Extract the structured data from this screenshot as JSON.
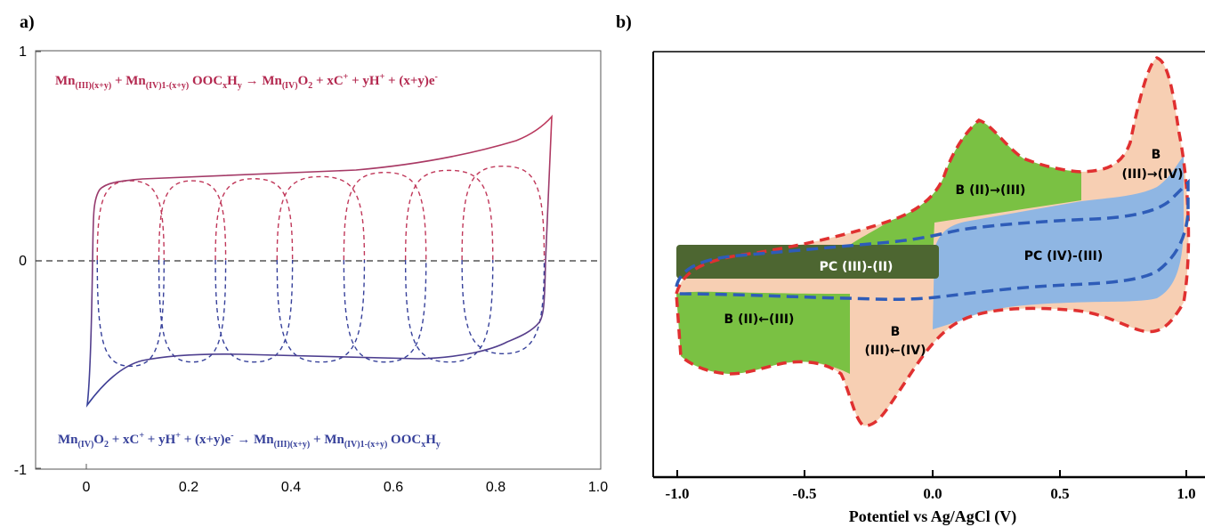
{
  "panel_a": {
    "label": "a)",
    "equation_top": {
      "t1": "Mn",
      "s1": "(III)(x+y)",
      "t2": " + Mn",
      "s2": "(IV)1-(x+y)",
      "t3": " OOC",
      "s3": "x",
      "t4": "H",
      "s4": "y",
      "t5": " →  Mn",
      "s5": "(IV)",
      "t6": "O",
      "s6": "2",
      "t7": " + xC",
      "p1": "+",
      "t8": " + yH",
      "p2": "+",
      "t9": " + (x+y)e",
      "p3": "-"
    },
    "equation_bottom": {
      "t1": "Mn",
      "s1": "(IV)",
      "t2": "O",
      "s2": "2",
      "t3": " + xC",
      "p1": "+",
      "t4": " + yH",
      "p2": "+",
      "t5": " + (x+y)e",
      "p3": "-",
      "t6": " → Mn",
      "s3": "(III)(x+y)",
      "t7": " + Mn",
      "s4": "(IV)1-(x+y)",
      "t8": " OOC",
      "s5": "x",
      "t9": "H",
      "s6": "y"
    }
  },
  "panel_b": {
    "label": "b)",
    "xlabel": "Potentiel vs Ag/AgCl (V)",
    "regions": {
      "b_iii_iv_1": "B",
      "b_iii_iv_2": "(III)→(IV)",
      "b_ii_iii": "B (II)→(III)",
      "pc_iv_iii": "PC (IV)-(III)",
      "pc_iii_ii": "PC  (III)-(II)",
      "b_ii_iii_back": "B (II)←(III)",
      "b_iii_iv_back_1": "B",
      "b_iii_iv_back_2": "(III)←(IV)"
    }
  },
  "chart_data": [
    {
      "type": "line",
      "xlim": [
        -0.1,
        1.0
      ],
      "ylim": [
        -1,
        1
      ],
      "xticks": [
        "0",
        "0.2",
        "0.4",
        "0.6",
        "0.8",
        "1.0"
      ],
      "yticks": [
        "1",
        "0",
        "-1"
      ],
      "hline_dashed_at": 0,
      "series": [
        {
          "role": "oxidation",
          "color": "#c0385a",
          "style": "solid",
          "x": [
            0.01,
            0.02,
            0.05,
            0.1,
            0.2,
            0.4,
            0.6,
            0.7,
            0.8,
            0.86,
            0.9
          ],
          "y": [
            0.0,
            0.28,
            0.36,
            0.4,
            0.41,
            0.45,
            0.5,
            0.53,
            0.57,
            0.61,
            0.69
          ]
        },
        {
          "role": "reduction",
          "color": "#36409a",
          "style": "solid",
          "x": [
            0.89,
            0.88,
            0.85,
            0.8,
            0.6,
            0.4,
            0.2,
            0.1,
            0.05,
            0.01
          ],
          "y": [
            0.0,
            -0.28,
            -0.36,
            -0.43,
            -0.46,
            -0.46,
            -0.45,
            -0.48,
            -0.56,
            -0.7
          ]
        }
      ],
      "dashed_loops": {
        "count": 7,
        "x_min": [
          0.02,
          0.14,
          0.25,
          0.37,
          0.5,
          0.62,
          0.73
        ],
        "x_max": [
          0.15,
          0.27,
          0.4,
          0.54,
          0.66,
          0.79,
          0.89
        ],
        "y_top": [
          0.38,
          0.38,
          0.39,
          0.4,
          0.42,
          0.43,
          0.45
        ],
        "y_bottom": [
          -0.51,
          -0.49,
          -0.49,
          -0.49,
          -0.49,
          -0.49,
          -0.45
        ]
      }
    },
    {
      "type": "area",
      "xlim": [
        -1.1,
        1.0
      ],
      "xticks": [
        "-1.0",
        "-0.5",
        "0.0",
        "0.5",
        "1.0"
      ],
      "xlabel": "Potentiel vs Ag/AgCl (V)",
      "colors": {
        "beige": "#f7cfb3",
        "green": "#7ac143",
        "blue": "#8fb6e3",
        "dark_green": "#4d6631",
        "red_dash": "#e03030",
        "blue_dash": "#2e5cb8"
      }
    }
  ]
}
